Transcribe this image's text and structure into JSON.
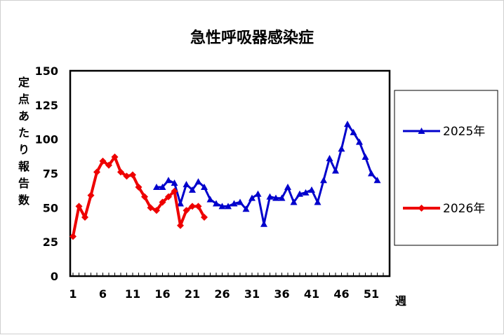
{
  "chart_data": {
    "type": "line",
    "title": "急性呼吸器感染症",
    "ylabel": "定点あたり報告数",
    "xlabel": "週",
    "ylim": [
      0,
      150
    ],
    "yticks": [
      0,
      25,
      50,
      75,
      100,
      125,
      150
    ],
    "xlim": [
      1,
      53
    ],
    "xticks": [
      1,
      6,
      11,
      16,
      21,
      26,
      31,
      36,
      41,
      46,
      51
    ],
    "legend_position": "right",
    "series": [
      {
        "name": "2025年",
        "color": "#0000cc",
        "marker": "triangle",
        "x": [
          15,
          16,
          17,
          18,
          19,
          20,
          21,
          22,
          23,
          24,
          25,
          26,
          27,
          28,
          29,
          30,
          31,
          32,
          33,
          34,
          35,
          36,
          37,
          38,
          39,
          40,
          41,
          42,
          43,
          44,
          45,
          46,
          47,
          48,
          49,
          50,
          51,
          52
        ],
        "values": [
          65,
          65,
          70,
          68,
          53,
          67,
          63,
          69,
          65,
          56,
          53,
          51,
          51,
          53,
          54,
          49,
          57,
          60,
          38,
          58,
          57,
          57,
          65,
          54,
          60,
          61,
          63,
          54,
          70,
          86,
          77,
          93,
          111,
          105,
          98,
          87,
          75,
          70
        ]
      },
      {
        "name": "2026年",
        "color": "#ee0000",
        "marker": "diamond",
        "x": [
          1,
          2,
          3,
          4,
          5,
          6,
          7,
          8,
          9,
          10,
          11,
          12,
          13,
          14,
          15,
          16,
          17,
          18,
          19,
          20,
          21,
          22,
          23
        ],
        "values": [
          29,
          51,
          43,
          59,
          76,
          84,
          81,
          87,
          76,
          73,
          74,
          65,
          58,
          50,
          48,
          54,
          58,
          62,
          37,
          48,
          51,
          51,
          43
        ]
      }
    ]
  }
}
